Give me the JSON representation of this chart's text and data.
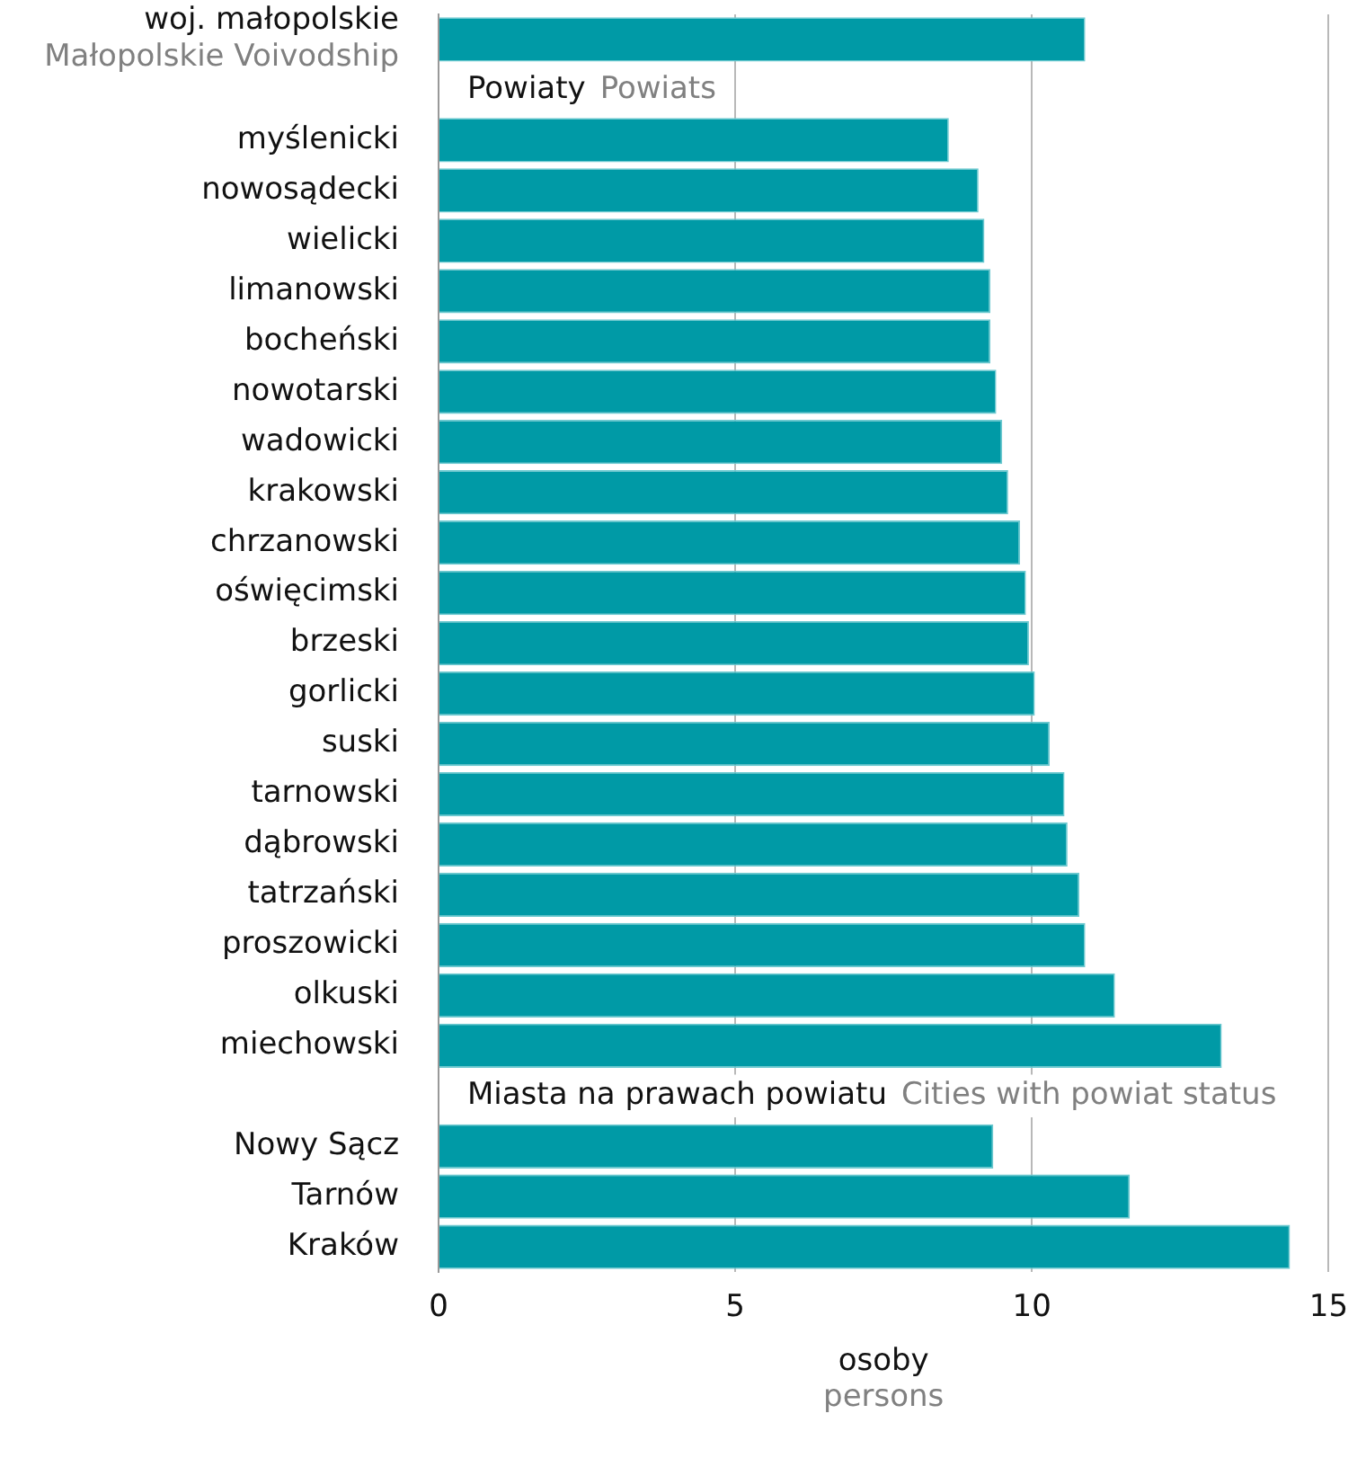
{
  "chart_data": {
    "type": "bar",
    "orientation": "horizontal",
    "categories": [
      "woj. małopolskie\nMałopolskie Voivodship",
      null,
      "myślenicki",
      "nowosądecki",
      "wielicki",
      "limanowski",
      "bocheński",
      "nowotarski",
      "wadowicki",
      "krakowski",
      "chrzanowski",
      "oświęcimski",
      "brzeski",
      "gorlicki",
      "suski",
      "tarnowski",
      "dąbrowski",
      "tatrzański",
      "proszowicki",
      "olkuski",
      "miechowski",
      null,
      "Nowy Sącz",
      "Tarnów",
      "Kraków"
    ],
    "values": [
      10.9,
      null,
      8.6,
      9.1,
      9.2,
      9.3,
      9.3,
      9.4,
      9.5,
      9.6,
      9.8,
      9.9,
      9.95,
      10.05,
      10.3,
      10.55,
      10.6,
      10.8,
      10.9,
      11.4,
      13.2,
      null,
      9.35,
      11.65,
      14.35
    ],
    "color": "#009aa6",
    "xlim": [
      0,
      15
    ],
    "xticks": [
      0,
      5,
      10,
      15
    ],
    "xlabel": "osoby\npersons",
    "annotations": [
      "Powiaty\nPowiats",
      "Miasta na prawach powiatu\nCities with powiat status"
    ],
    "grid": "x",
    "legend": false
  }
}
